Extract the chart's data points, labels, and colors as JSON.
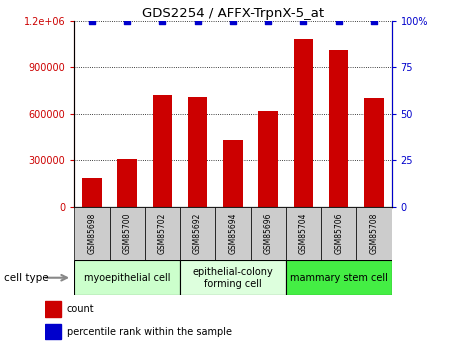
{
  "title": "GDS2254 / AFFX-TrpnX-5_at",
  "samples": [
    "GSM85698",
    "GSM85700",
    "GSM85702",
    "GSM85692",
    "GSM85694",
    "GSM85696",
    "GSM85704",
    "GSM85706",
    "GSM85708"
  ],
  "counts": [
    190000,
    310000,
    720000,
    710000,
    430000,
    620000,
    1080000,
    1010000,
    700000
  ],
  "percentile_values": [
    100,
    100,
    100,
    100,
    100,
    100,
    100,
    100,
    100
  ],
  "cell_types": [
    {
      "label": "myoepithelial cell",
      "start": 0,
      "end": 3,
      "color": "#ccffcc"
    },
    {
      "label": "epithelial-colony\nforming cell",
      "start": 3,
      "end": 6,
      "color": "#ddffdd"
    },
    {
      "label": "mammary stem cell",
      "start": 6,
      "end": 9,
      "color": "#44ee44"
    }
  ],
  "bar_color": "#cc0000",
  "dot_color": "#0000cc",
  "ylim_left": [
    0,
    1200000
  ],
  "ylim_right": [
    0,
    100
  ],
  "yticks_left": [
    0,
    300000,
    600000,
    900000,
    1200000
  ],
  "ytick_labels_left": [
    "0",
    "300000",
    "600000",
    "900000",
    "1.2e+06"
  ],
  "yticks_right": [
    0,
    25,
    50,
    75,
    100
  ],
  "ytick_labels_right": [
    "0",
    "25",
    "50",
    "75",
    "100%"
  ],
  "left_axis_color": "#cc0000",
  "right_axis_color": "#0000cc",
  "sample_box_color": "#cccccc",
  "legend_count_label": "count",
  "legend_percentile_label": "percentile rank within the sample",
  "cell_type_label": "cell type"
}
